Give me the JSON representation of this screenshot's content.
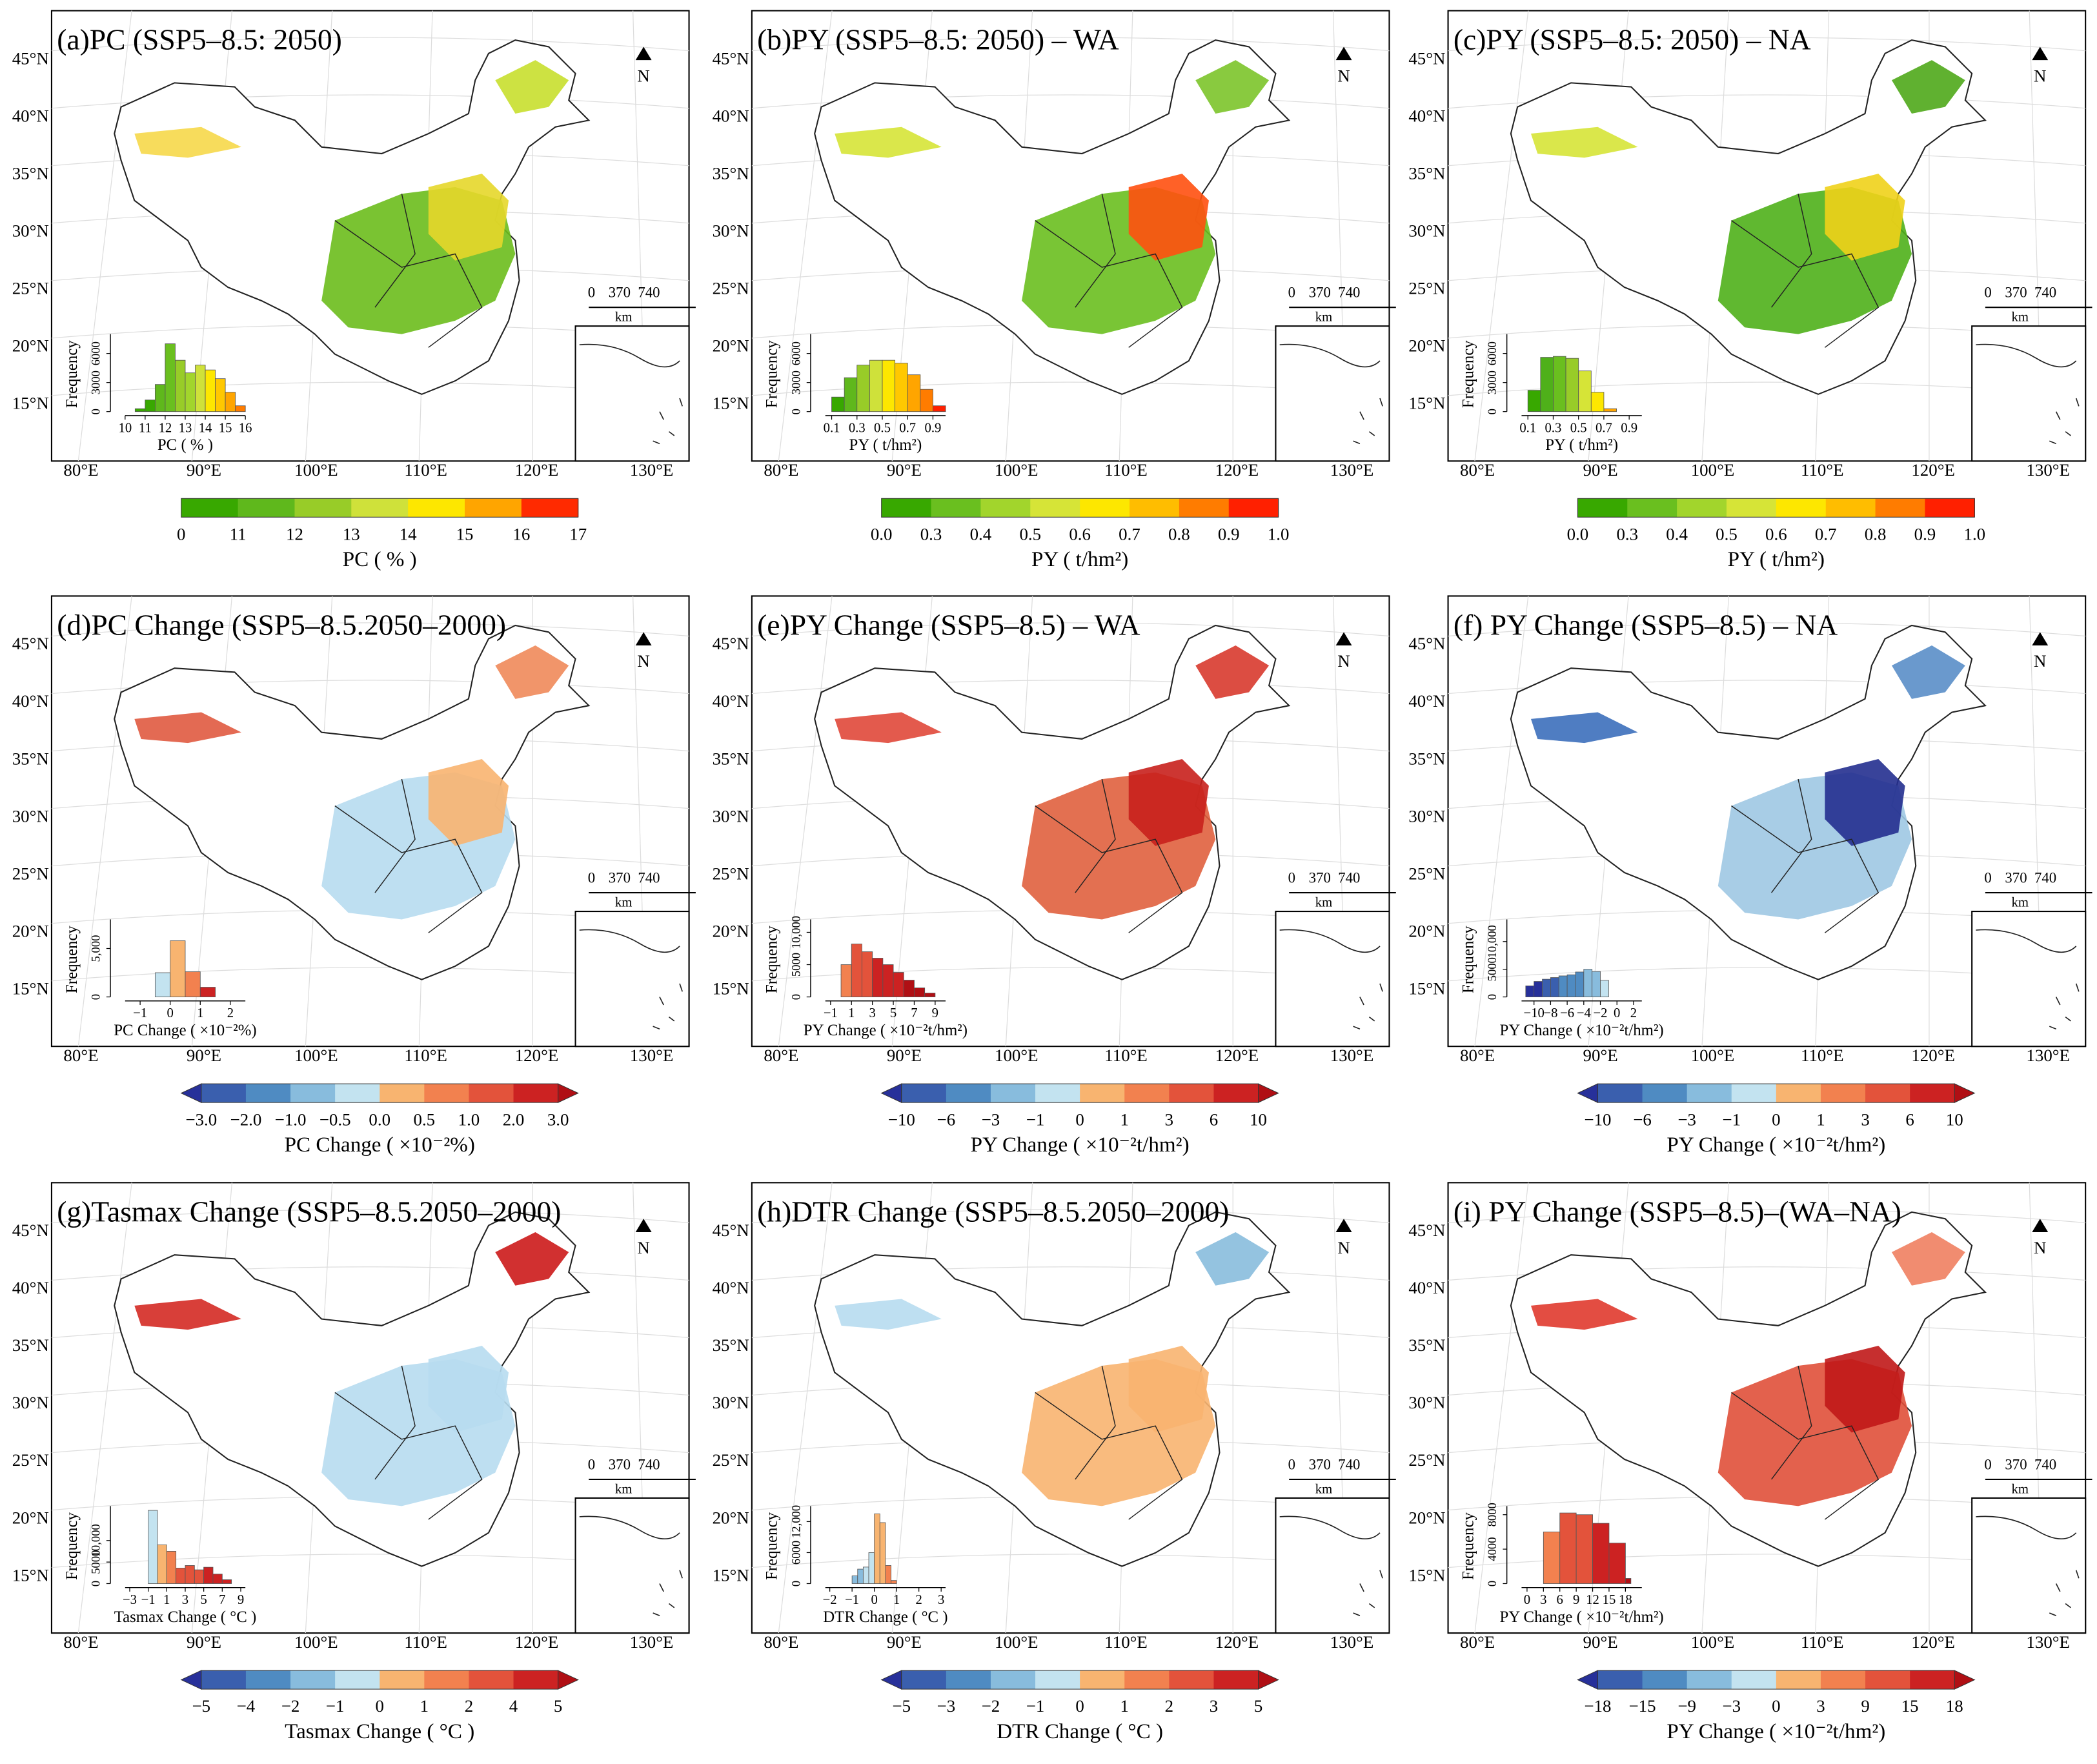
{
  "map_axes": {
    "lat": [
      "45°N",
      "40°N",
      "35°N",
      "30°N",
      "25°N",
      "20°N",
      "15°N"
    ],
    "lon": [
      "80°E",
      "90°E",
      "100°E",
      "110°E",
      "120°E",
      "130°E"
    ]
  },
  "north": "N",
  "scale": {
    "labels": [
      "0",
      "370",
      "740"
    ],
    "unit": "km"
  },
  "histogram_ylabel": "Frequency",
  "panels": [
    {
      "title": "(a)PC (SSP5–8.5: 2050)",
      "map_colors": [
        "#f6d84a",
        "#6cbd1c",
        "#e6d72a",
        "#c8df2e"
      ],
      "histogram": {
        "xlabel": "PC ( % )",
        "xticks": [
          10,
          11,
          12,
          13,
          14,
          15,
          16
        ],
        "xlim": [
          10,
          16
        ],
        "yticks": [
          0,
          3000,
          6000
        ],
        "ylim": [
          0,
          8000
        ],
        "bins": [
          10.5,
          11,
          11.5,
          12,
          12.5,
          13,
          13.5,
          14,
          14.5,
          15,
          15.5,
          16
        ],
        "counts": [
          300,
          1200,
          2800,
          7000,
          5300,
          4000,
          4800,
          4300,
          3400,
          2000,
          600
        ],
        "colors": [
          "#38a800",
          "#38a800",
          "#5fb81c",
          "#6abf1f",
          "#98cc28",
          "#a2d52c",
          "#cfe13a",
          "#fde700",
          "#ffc800",
          "#ffa500",
          "#ff7c00"
        ]
      },
      "colorbar": {
        "ticks": [
          "0",
          "11",
          "12",
          "13",
          "14",
          "15",
          "16",
          "17"
        ],
        "label": "PC ( % )",
        "arrows": false,
        "colors": [
          "#38a800",
          "#5fb81c",
          "#98cc28",
          "#cfe13a",
          "#fde700",
          "#ffa500",
          "#ff2a00"
        ]
      }
    },
    {
      "title": "(b)PY (SSP5–8.5: 2050) – WA",
      "map_colors": [
        "#d6e437",
        "#6abf1f",
        "#ff5010",
        "#7cc42a"
      ],
      "histogram": {
        "xlabel": "PY ( t/hm²)",
        "xticks": [
          0.1,
          0.3,
          0.5,
          0.7,
          0.9
        ],
        "xlim": [
          0.05,
          1.0
        ],
        "yticks": [
          0,
          3000,
          6000
        ],
        "ylim": [
          0,
          8000
        ],
        "bins": [
          0.1,
          0.2,
          0.3,
          0.4,
          0.5,
          0.6,
          0.7,
          0.8,
          0.9,
          1.0
        ],
        "counts": [
          1500,
          3500,
          4800,
          5300,
          5300,
          5000,
          3800,
          2300,
          600
        ],
        "colors": [
          "#38a800",
          "#5fb81c",
          "#98cc28",
          "#cfe13a",
          "#fde700",
          "#ffc800",
          "#ffa500",
          "#ff7c00",
          "#ff2000"
        ]
      },
      "colorbar": {
        "ticks": [
          "0.0",
          "0.3",
          "0.4",
          "0.5",
          "0.6",
          "0.7",
          "0.8",
          "0.9",
          "1.0"
        ],
        "label": "PY ( t/hm²)",
        "arrows": false,
        "colors": [
          "#38a800",
          "#6abf1f",
          "#a2d52c",
          "#d6e437",
          "#fde700",
          "#ffbd00",
          "#ff7c00",
          "#ff2000"
        ]
      }
    },
    {
      "title": "(c)PY (SSP5–8.5: 2050) – NA",
      "map_colors": [
        "#d6e437",
        "#4fb01a",
        "#f0d21a",
        "#4fa81a"
      ],
      "histogram": {
        "xlabel": "PY ( t/hm²)",
        "xticks": [
          0.1,
          0.3,
          0.5,
          0.7,
          0.9
        ],
        "xlim": [
          0.05,
          1.0
        ],
        "yticks": [
          0,
          3000,
          6000
        ],
        "ylim": [
          0,
          8000
        ],
        "bins": [
          0.1,
          0.2,
          0.3,
          0.4,
          0.5,
          0.6,
          0.7,
          0.8
        ],
        "counts": [
          2200,
          5600,
          5700,
          5500,
          4200,
          2000,
          300
        ],
        "colors": [
          "#38a800",
          "#4fb01a",
          "#6abf1f",
          "#98cc28",
          "#d6e437",
          "#fde700",
          "#ffa500"
        ]
      },
      "colorbar": {
        "ticks": [
          "0.0",
          "0.3",
          "0.4",
          "0.5",
          "0.6",
          "0.7",
          "0.8",
          "0.9",
          "1.0"
        ],
        "label": "PY ( t/hm²)",
        "arrows": false,
        "colors": [
          "#38a800",
          "#6abf1f",
          "#a2d52c",
          "#d6e437",
          "#fde700",
          "#ffbd00",
          "#ff7c00",
          "#ff2000"
        ]
      }
    },
    {
      "title": "(d)PC Change (SSP5–8.5.2050–2000)",
      "map_colors": [
        "#e05a40",
        "#b7dcef",
        "#f8b470",
        "#f08a5a"
      ],
      "histogram": {
        "xlabel": "PC Change ( ×10⁻²%)",
        "xticks": [
          {
            "value": -1,
            "label": "−1"
          },
          0,
          1,
          2
        ],
        "xlim": [
          -1.5,
          2.5
        ],
        "yticks": [
          0,
          {
            "value": 5000,
            "label": "5,000"
          }
        ],
        "ylim": [
          0,
          8000
        ],
        "bins": [
          -0.5,
          0,
          0.5,
          1,
          1.5
        ],
        "counts": [
          2500,
          5800,
          2600,
          1000
        ],
        "colors": [
          "#c3e3f0",
          "#f8b470",
          "#f2814f",
          "#cc2222"
        ]
      },
      "colorbar": {
        "ticks": [
          "−3.0",
          "−2.0",
          "−1.0",
          "−0.5",
          "0.0",
          "0.5",
          "1.0",
          "2.0",
          "3.0"
        ],
        "label": "PC Change ( ×10⁻²%)",
        "arrows": true,
        "colors": [
          "#27309a",
          "#3a5fae",
          "#4f8bc2",
          "#88bcdd",
          "#c3e3f0",
          "#f8b470",
          "#f2814f",
          "#e3533b",
          "#cc2222",
          "#b00f14"
        ]
      }
    },
    {
      "title": "(e)PY Change (SSP5–8.5) – WA",
      "map_colors": [
        "#e0483a",
        "#e0603e",
        "#c8201c",
        "#d83a2e"
      ],
      "histogram": {
        "xlabel": "PY Change ( ×10⁻²t/hm²)",
        "xticks": [
          {
            "value": -1,
            "label": "−1"
          },
          1,
          3,
          5,
          7,
          9
        ],
        "xlim": [
          -1.5,
          10
        ],
        "yticks": [
          0,
          5000,
          {
            "value": 10000,
            "label": "10,000"
          }
        ],
        "ylim": [
          0,
          12000
        ],
        "bins": [
          0,
          1,
          2,
          3,
          4,
          5,
          6,
          7,
          8,
          9
        ],
        "counts": [
          5000,
          8200,
          7000,
          6000,
          5000,
          3800,
          2600,
          1400,
          600
        ],
        "colors": [
          "#f2814f",
          "#e3533b",
          "#e3533b",
          "#cc2222",
          "#cc2222",
          "#cc2222",
          "#b00f14",
          "#b00f14",
          "#b00f14"
        ]
      },
      "colorbar": {
        "ticks": [
          "−10",
          "−6",
          "−3",
          "−1",
          "0",
          "1",
          "3",
          "6",
          "10"
        ],
        "label": "PY Change ( ×10⁻²t/hm²)",
        "arrows": true,
        "colors": [
          "#27309a",
          "#3a5fae",
          "#4f8bc2",
          "#88bcdd",
          "#c3e3f0",
          "#f8b470",
          "#f2814f",
          "#e3533b",
          "#cc2222",
          "#b00f14"
        ]
      }
    },
    {
      "title": "(f) PY Change (SSP5–8.5) – NA",
      "map_colors": [
        "#3c6fbb",
        "#9fc8e3",
        "#232f8f",
        "#5a8ec8"
      ],
      "histogram": {
        "xlabel": "PY Change ( ×10⁻²t/hm²)",
        "xticks": [
          {
            "value": -10,
            "label": "−10"
          },
          {
            "value": -8,
            "label": "−8"
          },
          {
            "value": -6,
            "label": "−6"
          },
          {
            "value": -4,
            "label": "−4"
          },
          {
            "value": -2,
            "label": "−2"
          },
          0,
          2
        ],
        "xlim": [
          -11.5,
          3
        ],
        "yticks": [
          0,
          5000,
          {
            "value": 10000,
            "label": "10,000"
          }
        ],
        "ylim": [
          0,
          14000
        ],
        "bins": [
          -11,
          -10,
          -9,
          -8,
          -7,
          -6,
          -5,
          -4,
          -3,
          -2,
          -1
        ],
        "counts": [
          2000,
          2800,
          3200,
          3500,
          3800,
          4000,
          4500,
          5000,
          4600,
          3000
        ],
        "colors": [
          "#27309a",
          "#27309a",
          "#3a5fae",
          "#3a5fae",
          "#4f8bc2",
          "#4f8bc2",
          "#4f8bc2",
          "#88bcdd",
          "#88bcdd",
          "#c3e3f0"
        ]
      },
      "colorbar": {
        "ticks": [
          "−10",
          "−6",
          "−3",
          "−1",
          "0",
          "1",
          "3",
          "6",
          "10"
        ],
        "label": "PY Change ( ×10⁻²t/hm²)",
        "arrows": true,
        "colors": [
          "#27309a",
          "#3a5fae",
          "#4f8bc2",
          "#88bcdd",
          "#c3e3f0",
          "#f8b470",
          "#f2814f",
          "#e3533b",
          "#cc2222",
          "#b00f14"
        ]
      }
    },
    {
      "title": "(g)Tasmax Change (SSP5–8.5.2050–2000)",
      "map_colors": [
        "#d42a24",
        "#b7dcef",
        "#b7dcef",
        "#cc1a1a"
      ],
      "histogram": {
        "xlabel": "Tasmax Change ( °C )",
        "xticks": [
          {
            "value": -3,
            "label": "−3"
          },
          {
            "value": -1,
            "label": "−1"
          },
          1,
          3,
          5,
          7,
          9
        ],
        "xlim": [
          -3.5,
          9.5
        ],
        "yticks": [
          0,
          5000,
          {
            "value": 10000,
            "label": "10,000"
          }
        ],
        "ylim": [
          0,
          18000
        ],
        "bins": [
          -1,
          0,
          1,
          2,
          3,
          4,
          5,
          6,
          7,
          8
        ],
        "counts": [
          17000,
          9000,
          7500,
          3600,
          4200,
          3200,
          3800,
          2200,
          900
        ],
        "colors": [
          "#c3e3f0",
          "#f8b470",
          "#f2814f",
          "#e3533b",
          "#e3533b",
          "#e3533b",
          "#cc2222",
          "#cc2222",
          "#cc2222"
        ]
      },
      "colorbar": {
        "ticks": [
          "−5",
          "−4",
          "−2",
          "−1",
          "0",
          "1",
          "2",
          "4",
          "5"
        ],
        "label": "Tasmax Change ( °C )",
        "arrows": true,
        "colors": [
          "#27309a",
          "#3a5fae",
          "#4f8bc2",
          "#88bcdd",
          "#c3e3f0",
          "#f8b470",
          "#f2814f",
          "#e3533b",
          "#cc2222",
          "#b00f14"
        ]
      }
    },
    {
      "title": "(h)DTR Change (SSP5–8.5.2050–2000)",
      "map_colors": [
        "#b7dcef",
        "#f8b470",
        "#f8b470",
        "#88bcdd"
      ],
      "histogram": {
        "xlabel": "DTR Change ( °C )",
        "xticks": [
          {
            "value": -2,
            "label": "−2"
          },
          {
            "value": -1,
            "label": "−1"
          },
          0,
          1,
          2,
          3
        ],
        "xlim": [
          -2.2,
          3.2
        ],
        "yticks": [
          0,
          6000,
          {
            "value": 12000,
            "label": "12,000"
          }
        ],
        "ylim": [
          0,
          15000
        ],
        "bins": [
          -1,
          -0.75,
          -0.5,
          -0.25,
          0,
          0.25,
          0.5,
          0.75,
          1
        ],
        "counts": [
          1500,
          2800,
          3200,
          6000,
          13500,
          11800,
          3500,
          600
        ],
        "colors": [
          "#88bcdd",
          "#88bcdd",
          "#c3e3f0",
          "#c3e3f0",
          "#f8b470",
          "#f8b470",
          "#f2814f",
          "#f2814f"
        ]
      },
      "colorbar": {
        "ticks": [
          "−5",
          "−3",
          "−2",
          "−1",
          "0",
          "1",
          "2",
          "3",
          "5"
        ],
        "label": "DTR Change ( °C )",
        "arrows": true,
        "colors": [
          "#27309a",
          "#3a5fae",
          "#4f8bc2",
          "#88bcdd",
          "#c3e3f0",
          "#f8b470",
          "#f2814f",
          "#e3533b",
          "#cc2222",
          "#b00f14"
        ]
      }
    },
    {
      "title": "(i) PY Change (SSP5–8.5)–(WA–NA)",
      "map_colors": [
        "#e03a2e",
        "#e0503a",
        "#c01818",
        "#f08060"
      ],
      "histogram": {
        "xlabel": "PY Change ( ×10⁻²t/hm²)",
        "xticks": [
          0,
          3,
          6,
          9,
          12,
          15,
          18
        ],
        "xlim": [
          -1,
          21
        ],
        "yticks": [
          0,
          4000,
          8000
        ],
        "ylim": [
          0,
          9000
        ],
        "bins": [
          3,
          6,
          9,
          12,
          15,
          18,
          19
        ],
        "counts": [
          6000,
          8200,
          8000,
          7000,
          4700,
          600
        ],
        "colors": [
          "#f2814f",
          "#e3533b",
          "#e3533b",
          "#cc2222",
          "#cc2222",
          "#b00f14"
        ]
      },
      "colorbar": {
        "ticks": [
          "−18",
          "−15",
          "−9",
          "−3",
          "0",
          "3",
          "9",
          "15",
          "18"
        ],
        "label": "PY Change ( ×10⁻²t/hm²)",
        "arrows": true,
        "colors": [
          "#27309a",
          "#3a5fae",
          "#4f8bc2",
          "#88bcdd",
          "#c3e3f0",
          "#f8b470",
          "#f2814f",
          "#e3533b",
          "#cc2222",
          "#b00f14"
        ]
      }
    }
  ]
}
